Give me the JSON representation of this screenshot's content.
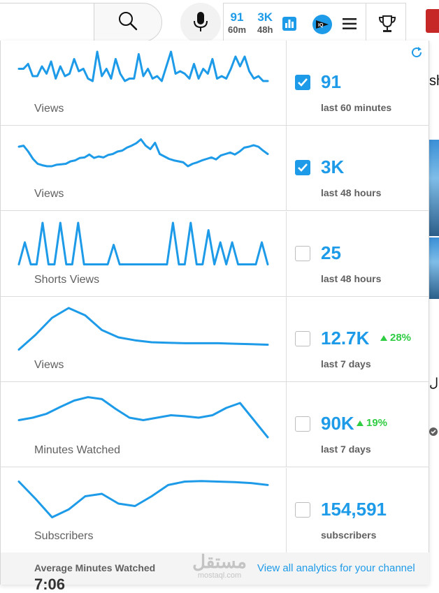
{
  "toolbar": {
    "stat_60m": {
      "value": "91",
      "period": "60m"
    },
    "stat_48h": {
      "value": "3K",
      "period": "48h"
    }
  },
  "background_fragments": {
    "text_top": "sh",
    "text_mid": "ل"
  },
  "metrics": [
    {
      "label": "Views",
      "value": "91",
      "change": "",
      "period": "last 60 minutes",
      "checked": true,
      "sparkline": [
        0.35,
        0.35,
        0.25,
        0.5,
        0.5,
        0.3,
        0.45,
        0.2,
        0.55,
        0.3,
        0.5,
        0.45,
        0.15,
        0.4,
        0.35,
        0.55,
        0.6,
        0.0,
        0.5,
        0.35,
        0.55,
        0.15,
        0.45,
        0.6,
        0.55,
        0.55,
        0.05,
        0.5,
        0.35,
        0.55,
        0.5,
        0.6,
        0.3,
        0.0,
        0.45,
        0.4,
        0.45,
        0.55,
        0.25,
        0.55,
        0.35,
        0.45,
        0.15,
        0.55,
        0.5,
        0.55,
        0.35,
        0.1,
        0.3,
        0.1,
        0.4,
        0.55,
        0.5,
        0.6,
        0.6
      ]
    },
    {
      "label": "Views",
      "value": "3K",
      "change": "",
      "period": "last 48 hours",
      "checked": true,
      "sparkline": [
        0.2,
        0.18,
        0.3,
        0.45,
        0.55,
        0.58,
        0.6,
        0.6,
        0.57,
        0.56,
        0.55,
        0.5,
        0.48,
        0.43,
        0.42,
        0.36,
        0.43,
        0.4,
        0.42,
        0.37,
        0.35,
        0.3,
        0.28,
        0.22,
        0.18,
        0.13,
        0.05,
        0.18,
        0.25,
        0.12,
        0.35,
        0.4,
        0.45,
        0.48,
        0.5,
        0.52,
        0.6,
        0.55,
        0.52,
        0.48,
        0.45,
        0.42,
        0.46,
        0.38,
        0.35,
        0.32,
        0.36,
        0.3,
        0.22,
        0.2,
        0.17,
        0.2,
        0.28,
        0.35
      ]
    },
    {
      "label": "Shorts Views",
      "value": "25",
      "change": "",
      "period": "last 48 hours",
      "checked": false,
      "sparkline": [
        0.85,
        0.4,
        0.85,
        0.85,
        0.0,
        0.85,
        0.85,
        0.0,
        0.85,
        0.85,
        0.0,
        0.85,
        0.85,
        0.85,
        0.85,
        0.85,
        0.45,
        0.85,
        0.85,
        0.85,
        0.85,
        0.85,
        0.85,
        0.85,
        0.85,
        0.85,
        0.0,
        0.85,
        0.85,
        0.0,
        0.85,
        0.85,
        0.15,
        0.85,
        0.4,
        0.85,
        0.4,
        0.85,
        0.85,
        0.85,
        0.85,
        0.4,
        0.85
      ]
    },
    {
      "label": "Views",
      "value": "12.7K",
      "change": "28%",
      "period": "last 7 days",
      "checked": false,
      "sparkline": [
        0.85,
        0.55,
        0.2,
        0.0,
        0.15,
        0.45,
        0.6,
        0.66,
        0.7,
        0.71,
        0.72,
        0.72,
        0.72,
        0.73,
        0.74,
        0.75
      ]
    },
    {
      "label": "Minutes Watched",
      "value": "90K",
      "change": "19%",
      "period": "last 7 days",
      "checked": false,
      "sparkline": [
        0.55,
        0.5,
        0.42,
        0.28,
        0.15,
        0.08,
        0.12,
        0.32,
        0.5,
        0.55,
        0.5,
        0.45,
        0.47,
        0.5,
        0.45,
        0.3,
        0.2,
        0.55,
        0.9
      ]
    },
    {
      "label": "Subscribers",
      "value": "154,591",
      "change": "",
      "period": "subscribers",
      "checked": false,
      "sparkline": [
        0.05,
        0.4,
        0.78,
        0.62,
        0.35,
        0.3,
        0.5,
        0.55,
        0.35,
        0.12,
        0.05,
        0.04,
        0.05,
        0.06,
        0.08,
        0.12
      ]
    }
  ],
  "footer": {
    "label": "Average Minutes Watched",
    "value": "7:06",
    "link": "View all analytics for your channel"
  },
  "watermark": {
    "main": "مستقل",
    "sub": "mostaql.com"
  },
  "colors": {
    "accent": "#1e9be8",
    "positive": "#2ecc40"
  }
}
